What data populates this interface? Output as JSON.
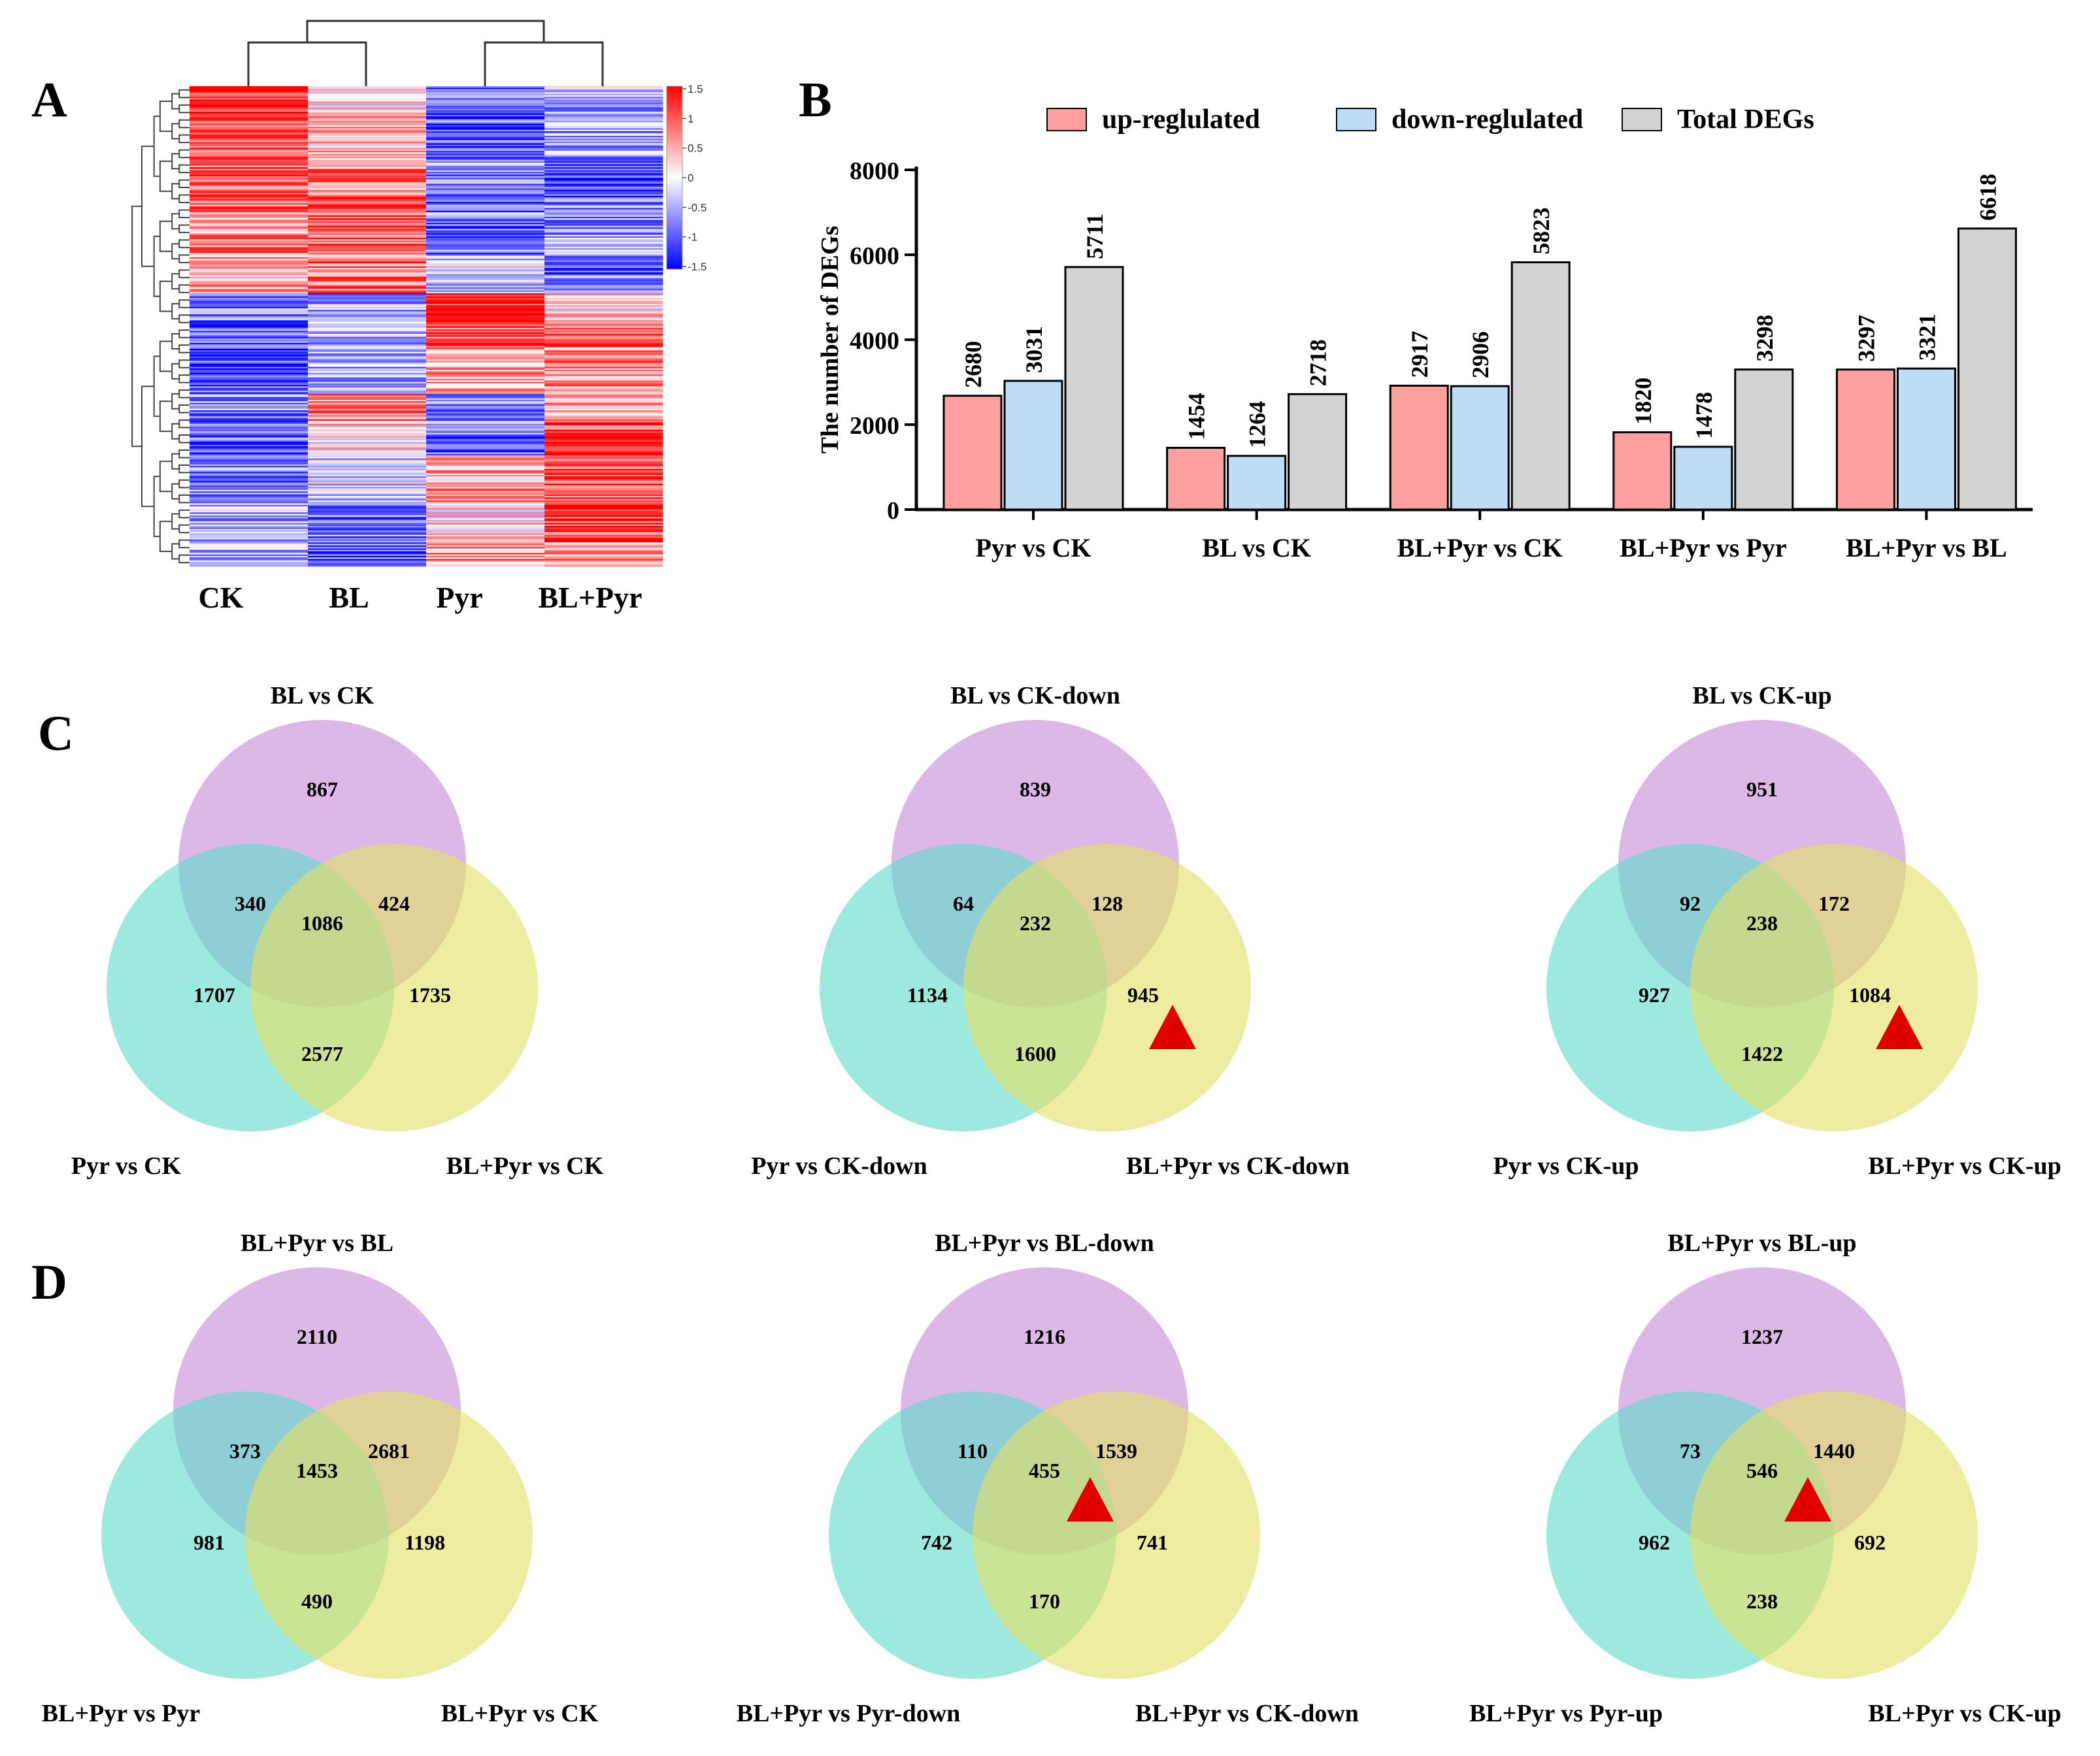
{
  "panel_labels": {
    "a": "A",
    "b": "B",
    "c": "C",
    "d": "D"
  },
  "colors": {
    "up": "#ffa0a0",
    "down": "#bddcf5",
    "total": "#d3d3d3",
    "venn_top": "#c58cd6",
    "venn_left": "#63dccb",
    "venn_right": "#e2e065",
    "marker": "#e00000",
    "heat_high": "#ff0000",
    "heat_low": "#0000ff"
  },
  "chart_data": [
    {
      "type": "heatmap",
      "columns": [
        "CK",
        "BL",
        "Pyr",
        "BL+Pyr"
      ],
      "colorbar": {
        "ticks": [
          "1.5",
          "1",
          "0.5",
          "0",
          "-0.5",
          "-1",
          "-1.5"
        ],
        "range": [
          -1.5,
          1.5
        ]
      }
    },
    {
      "type": "bar",
      "ylabel": "The number of DEGs",
      "ylim": [
        0,
        8000
      ],
      "yticks": [
        "0",
        "2000",
        "4000",
        "6000",
        "8000"
      ],
      "legend": [
        "up-reglulated",
        "down-reglulated",
        "Total DEGs"
      ],
      "categories": [
        "Pyr vs CK",
        "BL vs CK",
        "BL+Pyr vs CK",
        "BL+Pyr vs Pyr",
        "BL+Pyr vs BL"
      ],
      "series": [
        {
          "name": "up-reglulated",
          "values": [
            2680,
            1454,
            2917,
            1820,
            3297
          ]
        },
        {
          "name": "down-reglulated",
          "values": [
            3031,
            1264,
            2906,
            1478,
            3321
          ]
        },
        {
          "name": "Total DEGs",
          "values": [
            5711,
            2718,
            5823,
            3298,
            6618
          ]
        }
      ]
    }
  ],
  "venns": [
    {
      "top": "BL vs CK",
      "left": "Pyr vs CK",
      "right": "BL+Pyr vs CK",
      "values": {
        "a": "867",
        "ab": "340",
        "abc": "1086",
        "ac": "424",
        "b": "1707",
        "c": "1735",
        "bc": "2577"
      },
      "marker": false
    },
    {
      "top": "BL vs CK-down",
      "left": "Pyr vs CK-down",
      "right": "BL+Pyr vs CK-down",
      "values": {
        "a": "839",
        "ab": "64",
        "abc": "232",
        "ac": "128",
        "b": "1134",
        "c": "945",
        "bc": "1600"
      },
      "marker": true
    },
    {
      "top": "BL vs CK-up",
      "left": "Pyr vs CK-up",
      "right": "BL+Pyr vs CK-up",
      "values": {
        "a": "951",
        "ab": "92",
        "abc": "238",
        "ac": "172",
        "b": "927",
        "c": "1084",
        "bc": "1422"
      },
      "marker": true
    },
    {
      "top": "BL+Pyr vs BL",
      "left": "BL+Pyr vs Pyr",
      "right": "BL+Pyr vs CK",
      "values": {
        "a": "2110",
        "ab": "373",
        "abc": "1453",
        "ac": "2681",
        "b": "981",
        "c": "1198",
        "bc": "490"
      },
      "marker": false
    },
    {
      "top": "BL+Pyr vs BL-down",
      "left": "BL+Pyr vs Pyr-down",
      "right": "BL+Pyr vs CK-down",
      "values": {
        "a": "1216",
        "ab": "110",
        "abc": "455",
        "ac": "1539",
        "b": "742",
        "c": "741",
        "bc": "170"
      },
      "marker": true
    },
    {
      "top": "BL+Pyr vs BL-up",
      "left": "BL+Pyr vs Pyr-up",
      "right": "BL+Pyr vs CK-up",
      "values": {
        "a": "1237",
        "ab": "73",
        "abc": "546",
        "ac": "1440",
        "b": "962",
        "c": "692",
        "bc": "238"
      },
      "marker": true
    }
  ]
}
